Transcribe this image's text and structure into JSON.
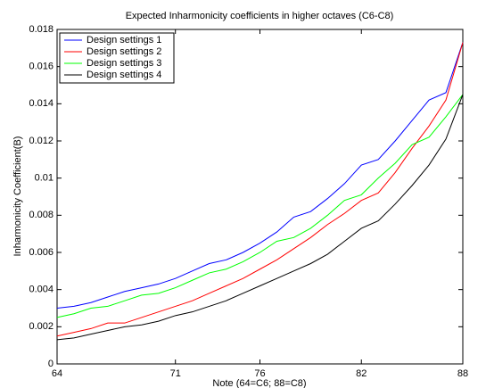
{
  "chart_data": {
    "type": "line",
    "title": "Expected Inharmonicity coefficients in higher octaves (C6-C8)",
    "x_label": "Note (64=C6; 88=C8)",
    "y_label": "Inharmonicity Coefficient(B)",
    "x": [
      64,
      65,
      66,
      67,
      68,
      69,
      70,
      71,
      72,
      73,
      74,
      75,
      76,
      77,
      78,
      79,
      80,
      81,
      82,
      83,
      84,
      85,
      86,
      87,
      88
    ],
    "xlim": [
      64,
      88
    ],
    "xticks": [
      64,
      71,
      76,
      82,
      88
    ],
    "ylim": [
      0,
      0.018
    ],
    "yticks": [
      0,
      0.002,
      0.004,
      0.006,
      0.008,
      0.01,
      0.012,
      0.014,
      0.016,
      0.018
    ],
    "legend_position": "upper-left",
    "series": [
      {
        "name": "Design settings 1",
        "color": "#0000ff",
        "values": [
          0.003,
          0.0031,
          0.0033,
          0.0036,
          0.0039,
          0.0041,
          0.0043,
          0.0046,
          0.005,
          0.0054,
          0.0056,
          0.006,
          0.0065,
          0.0071,
          0.0079,
          0.0082,
          0.0089,
          0.0097,
          0.0107,
          0.011,
          0.012,
          0.0131,
          0.0142,
          0.0146,
          0.0173
        ]
      },
      {
        "name": "Design settings 2",
        "color": "#ff0000",
        "values": [
          0.0015,
          0.0017,
          0.0019,
          0.0022,
          0.0022,
          0.0025,
          0.0028,
          0.0031,
          0.0034,
          0.0038,
          0.0042,
          0.0046,
          0.0051,
          0.0056,
          0.0062,
          0.0068,
          0.0075,
          0.0081,
          0.0088,
          0.0092,
          0.0103,
          0.0116,
          0.0128,
          0.0142,
          0.0173
        ]
      },
      {
        "name": "Design settings 3",
        "color": "#00ff00",
        "values": [
          0.0025,
          0.0027,
          0.003,
          0.0031,
          0.0034,
          0.0037,
          0.0038,
          0.0041,
          0.0045,
          0.0049,
          0.0051,
          0.0055,
          0.006,
          0.0066,
          0.0068,
          0.0073,
          0.008,
          0.0088,
          0.0091,
          0.01,
          0.0108,
          0.0118,
          0.0122,
          0.0133,
          0.0145
        ]
      },
      {
        "name": "Design settings 4",
        "color": "#000000",
        "values": [
          0.0013,
          0.0014,
          0.0016,
          0.0018,
          0.002,
          0.0021,
          0.0023,
          0.0026,
          0.0028,
          0.0031,
          0.0034,
          0.0038,
          0.0042,
          0.0046,
          0.005,
          0.0054,
          0.0059,
          0.0066,
          0.0073,
          0.0077,
          0.0086,
          0.0096,
          0.0107,
          0.0121,
          0.0145
        ]
      }
    ]
  }
}
